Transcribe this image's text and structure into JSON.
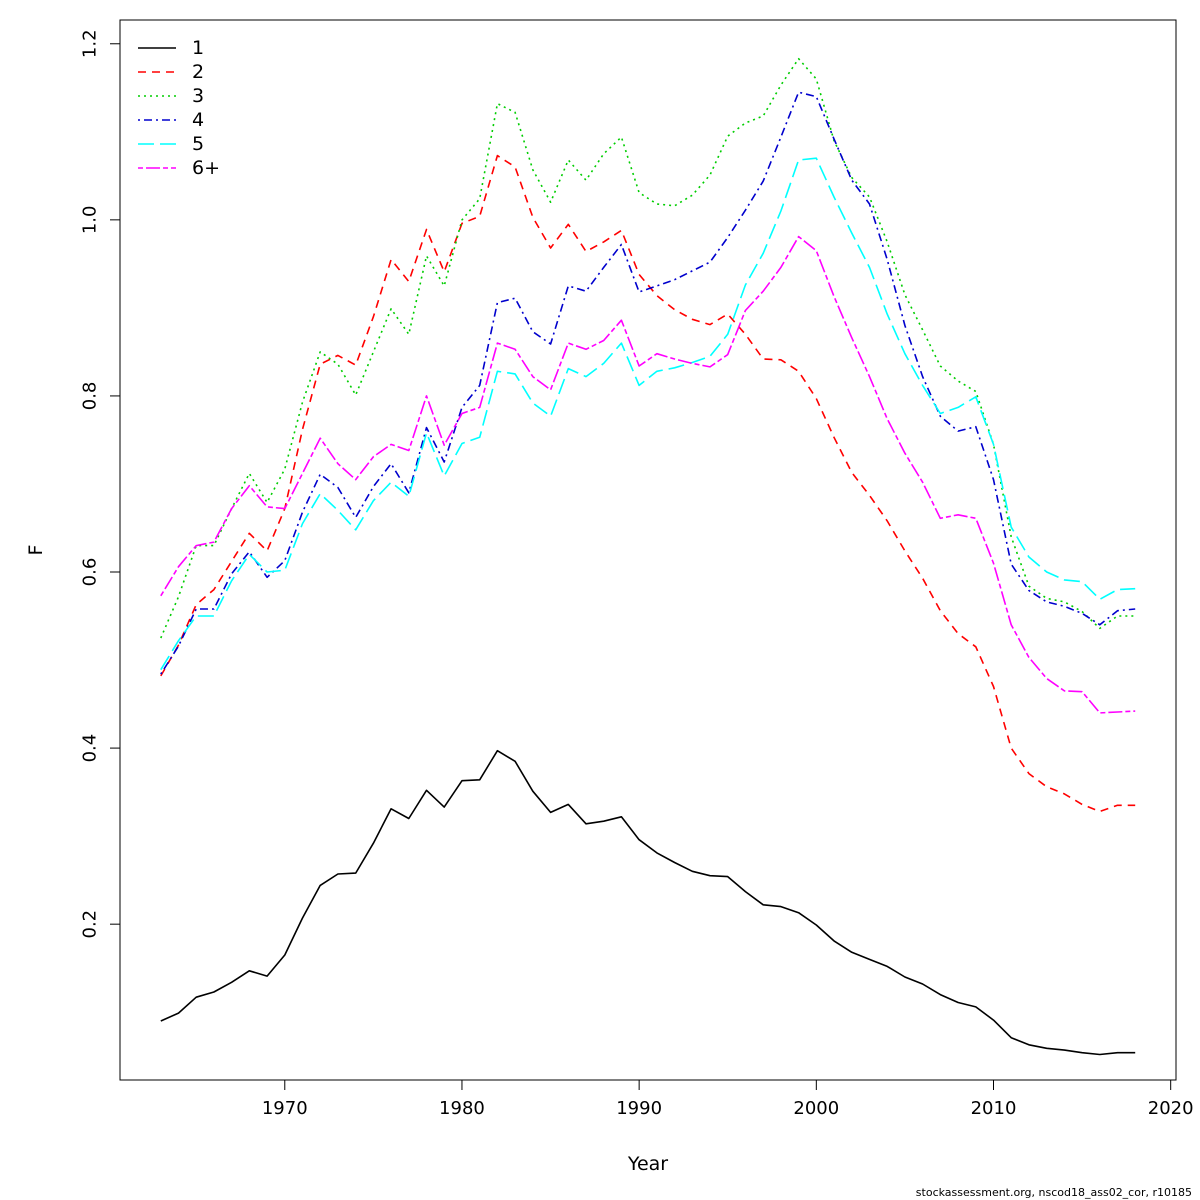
{
  "chart_data": {
    "type": "line",
    "xlabel": "Year",
    "ylabel": "F",
    "xlim": [
      1960.7,
      2020.3
    ],
    "ylim": [
      0.023,
      1.227
    ],
    "xticks": [
      1970,
      1980,
      1990,
      2000,
      2010,
      2020
    ],
    "yticks": [
      0.2,
      0.4,
      0.6,
      0.8,
      1.0,
      1.2
    ],
    "xtick_labels": [
      "1970",
      "1980",
      "1990",
      "2000",
      "2010",
      "2020"
    ],
    "ytick_labels": [
      "0.2",
      "0.4",
      "0.6",
      "0.8",
      "1.0",
      "1.2"
    ],
    "grid": false,
    "legend_position": "top-left",
    "x": [
      1963,
      1964,
      1965,
      1966,
      1967,
      1968,
      1969,
      1970,
      1971,
      1972,
      1973,
      1974,
      1975,
      1976,
      1977,
      1978,
      1979,
      1980,
      1981,
      1982,
      1983,
      1984,
      1985,
      1986,
      1987,
      1988,
      1989,
      1990,
      1991,
      1992,
      1993,
      1994,
      1995,
      1996,
      1997,
      1998,
      1999,
      2000,
      2001,
      2002,
      2003,
      2004,
      2005,
      2006,
      2007,
      2008,
      2009,
      2010,
      2011,
      2012,
      2013,
      2014,
      2015,
      2016,
      2017,
      2018
    ],
    "series": [
      {
        "name": "1",
        "color": "#000000",
        "dash": "solid",
        "values": [
          0.09,
          0.099,
          0.117,
          0.123,
          0.134,
          0.147,
          0.141,
          0.165,
          0.207,
          0.244,
          0.257,
          0.258,
          0.292,
          0.331,
          0.32,
          0.352,
          0.333,
          0.363,
          0.364,
          0.397,
          0.385,
          0.351,
          0.327,
          0.336,
          0.314,
          0.317,
          0.322,
          0.296,
          0.281,
          0.27,
          0.26,
          0.255,
          0.254,
          0.237,
          0.222,
          0.22,
          0.213,
          0.199,
          0.181,
          0.168,
          0.16,
          0.152,
          0.14,
          0.132,
          0.12,
          0.111,
          0.106,
          0.091,
          0.071,
          0.063,
          0.059,
          0.057,
          0.054,
          0.052,
          0.054,
          0.054
        ]
      },
      {
        "name": "2",
        "color": "#ff0000",
        "dash": "dashed",
        "values": [
          0.482,
          0.517,
          0.563,
          0.58,
          0.612,
          0.644,
          0.624,
          0.672,
          0.762,
          0.836,
          0.846,
          0.835,
          0.89,
          0.955,
          0.93,
          0.989,
          0.941,
          0.996,
          1.004,
          1.073,
          1.06,
          1.003,
          0.968,
          0.995,
          0.964,
          0.975,
          0.988,
          0.938,
          0.914,
          0.898,
          0.887,
          0.881,
          0.893,
          0.87,
          0.842,
          0.841,
          0.828,
          0.797,
          0.753,
          0.713,
          0.687,
          0.658,
          0.624,
          0.593,
          0.556,
          0.53,
          0.515,
          0.47,
          0.4,
          0.371,
          0.356,
          0.348,
          0.336,
          0.328,
          0.335,
          0.335
        ]
      },
      {
        "name": "3",
        "color": "#00cd00",
        "dash": "dotted",
        "values": [
          0.525,
          0.572,
          0.63,
          0.63,
          0.672,
          0.712,
          0.679,
          0.717,
          0.793,
          0.85,
          0.836,
          0.801,
          0.85,
          0.899,
          0.87,
          0.959,
          0.925,
          1.0,
          1.024,
          1.132,
          1.122,
          1.057,
          1.02,
          1.068,
          1.045,
          1.075,
          1.094,
          1.031,
          1.018,
          1.016,
          1.028,
          1.051,
          1.095,
          1.11,
          1.118,
          1.153,
          1.183,
          1.16,
          1.09,
          1.048,
          1.026,
          0.975,
          0.915,
          0.875,
          0.834,
          0.817,
          0.805,
          0.745,
          0.64,
          0.584,
          0.57,
          0.566,
          0.555,
          0.536,
          0.55,
          0.55
        ]
      },
      {
        "name": "4",
        "color": "#0000cd",
        "dash": "dotdash",
        "values": [
          0.484,
          0.516,
          0.558,
          0.558,
          0.598,
          0.623,
          0.594,
          0.613,
          0.668,
          0.711,
          0.696,
          0.662,
          0.697,
          0.723,
          0.69,
          0.764,
          0.725,
          0.787,
          0.812,
          0.906,
          0.911,
          0.873,
          0.859,
          0.925,
          0.919,
          0.946,
          0.972,
          0.918,
          0.925,
          0.932,
          0.942,
          0.952,
          0.98,
          1.011,
          1.044,
          1.094,
          1.145,
          1.14,
          1.092,
          1.045,
          1.018,
          0.955,
          0.88,
          0.822,
          0.777,
          0.76,
          0.765,
          0.705,
          0.609,
          0.579,
          0.566,
          0.561,
          0.553,
          0.54,
          0.556,
          0.558
        ]
      },
      {
        "name": "5",
        "color": "#00ffff",
        "dash": "longdash",
        "values": [
          0.489,
          0.522,
          0.55,
          0.55,
          0.59,
          0.62,
          0.6,
          0.602,
          0.655,
          0.689,
          0.67,
          0.648,
          0.681,
          0.702,
          0.686,
          0.758,
          0.709,
          0.746,
          0.753,
          0.828,
          0.825,
          0.792,
          0.777,
          0.831,
          0.822,
          0.837,
          0.86,
          0.812,
          0.828,
          0.832,
          0.838,
          0.845,
          0.87,
          0.926,
          0.962,
          1.01,
          1.068,
          1.07,
          1.026,
          0.985,
          0.946,
          0.893,
          0.848,
          0.812,
          0.78,
          0.787,
          0.799,
          0.745,
          0.651,
          0.617,
          0.6,
          0.591,
          0.589,
          0.569,
          0.58,
          0.581
        ]
      },
      {
        "name": "6+",
        "color": "#ff00ff",
        "dash": "twodash",
        "values": [
          0.573,
          0.606,
          0.63,
          0.634,
          0.672,
          0.698,
          0.674,
          0.672,
          0.712,
          0.752,
          0.723,
          0.705,
          0.731,
          0.745,
          0.738,
          0.8,
          0.744,
          0.78,
          0.787,
          0.86,
          0.853,
          0.822,
          0.807,
          0.86,
          0.853,
          0.863,
          0.886,
          0.834,
          0.848,
          0.842,
          0.837,
          0.833,
          0.847,
          0.897,
          0.919,
          0.946,
          0.981,
          0.965,
          0.913,
          0.866,
          0.822,
          0.774,
          0.735,
          0.702,
          0.661,
          0.665,
          0.661,
          0.61,
          0.54,
          0.503,
          0.479,
          0.465,
          0.464,
          0.44,
          0.441,
          0.442
        ]
      }
    ]
  },
  "footnote": "stockassessment.org, nscod18_ass02_cor, r10185"
}
